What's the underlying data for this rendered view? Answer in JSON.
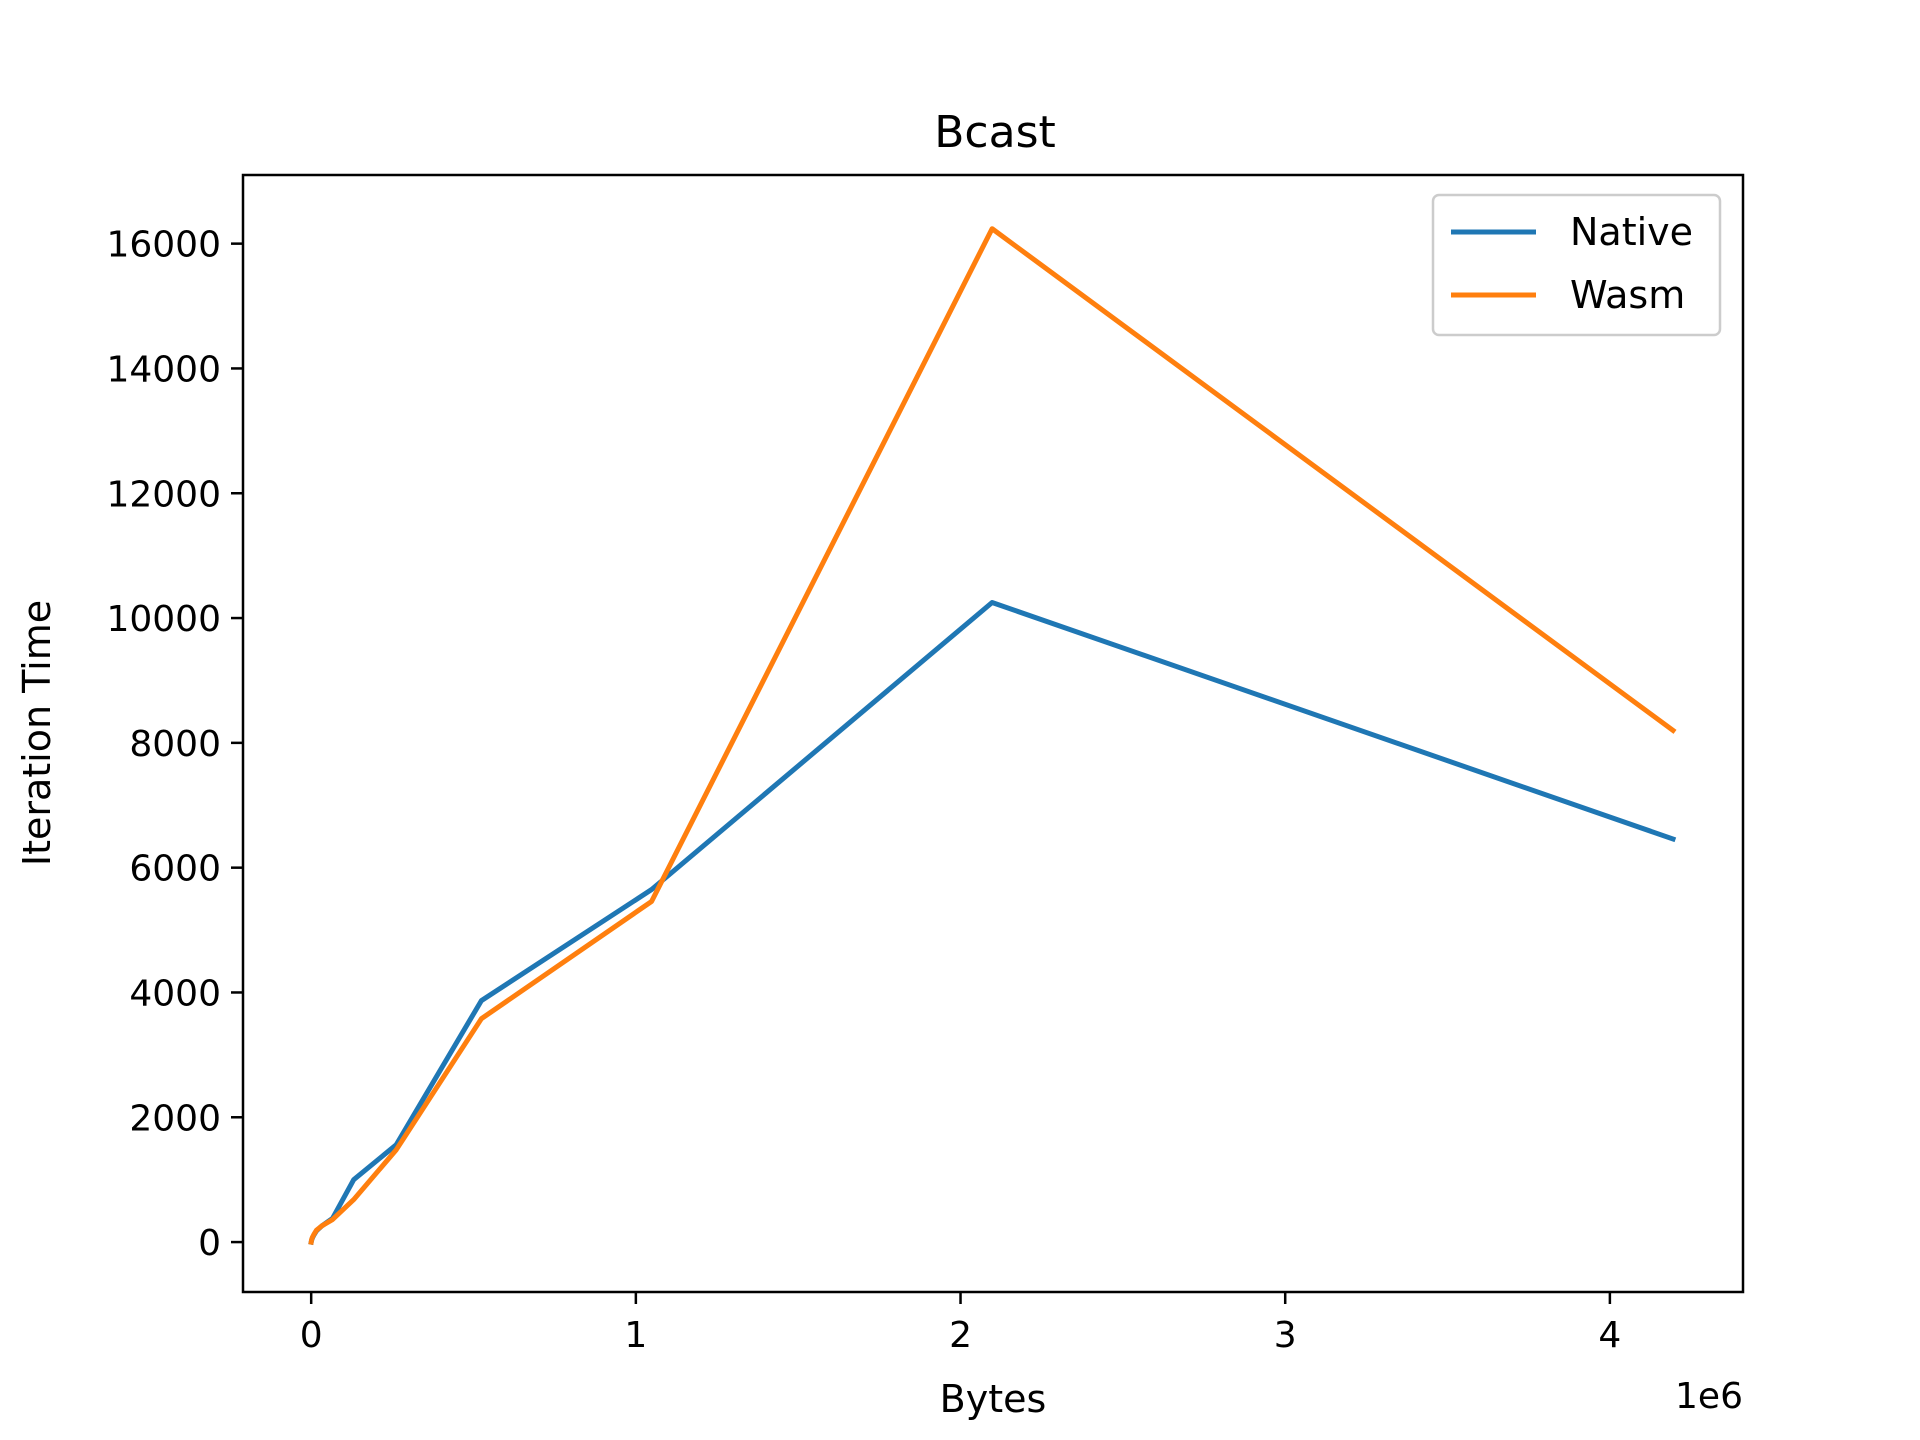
{
  "chart_data": {
    "type": "line",
    "title": "Bcast",
    "xlabel": "Bytes",
    "ylabel": "Iteration Time",
    "x_offset_label": "1e6",
    "xlim": [
      -0.21,
      4.41
    ],
    "ylim": [
      -800,
      17100
    ],
    "x_ticks": [
      0,
      1,
      2,
      3,
      4
    ],
    "x_tick_labels": [
      "0",
      "1",
      "2",
      "3",
      "4"
    ],
    "y_ticks": [
      0,
      2000,
      4000,
      6000,
      8000,
      10000,
      12000,
      14000,
      16000
    ],
    "y_tick_labels": [
      "0",
      "2000",
      "4000",
      "6000",
      "8000",
      "10000",
      "12000",
      "14000",
      "16000"
    ],
    "grid": false,
    "legend_position": "top-right",
    "x": [
      0,
      0.001024,
      0.002048,
      0.004096,
      0.008192,
      0.016384,
      0.032768,
      0.065536,
      0.131072,
      0.262144,
      0.524288,
      1.048576,
      2.097152,
      4.194304
    ],
    "series": [
      {
        "name": "Native",
        "color": "#1f77b4",
        "values": [
          0,
          20,
          40,
          70,
          110,
          180,
          260,
          380,
          1000,
          1560,
          3870,
          5650,
          10250,
          6460
        ]
      },
      {
        "name": "Wasm",
        "color": "#ff7f0e",
        "values": [
          0,
          30,
          50,
          80,
          120,
          190,
          260,
          360,
          680,
          1480,
          3580,
          5460,
          16240,
          8200
        ]
      }
    ]
  }
}
